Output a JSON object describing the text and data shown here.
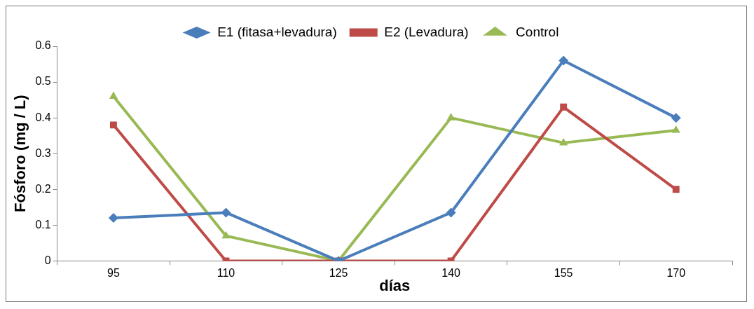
{
  "chart_data": {
    "type": "line",
    "xlabel": "días",
    "ylabel": "Fósforo (mg / L)",
    "categories": [
      "95",
      "110",
      "125",
      "140",
      "155",
      "170"
    ],
    "series": [
      {
        "name": "E1 (fitasa+levadura)",
        "color": "#4a7ebb",
        "marker": "diamond",
        "values": [
          0.12,
          0.135,
          0,
          0.135,
          0.56,
          0.4
        ]
      },
      {
        "name": "E2 (Levadura)",
        "color": "#be4b48",
        "marker": "square",
        "values": [
          0.38,
          0,
          0,
          0,
          0.43,
          0.2
        ]
      },
      {
        "name": "Control",
        "color": "#98b954",
        "marker": "triangle",
        "values": [
          0.46,
          0.07,
          0,
          0.4,
          0.33,
          0.365
        ]
      }
    ],
    "ylim": [
      0,
      0.6
    ],
    "yticks": [
      0,
      0.1,
      0.2,
      0.3,
      0.4,
      0.5,
      0.6
    ],
    "grid": false,
    "legend": "top",
    "line_style": "solid"
  }
}
